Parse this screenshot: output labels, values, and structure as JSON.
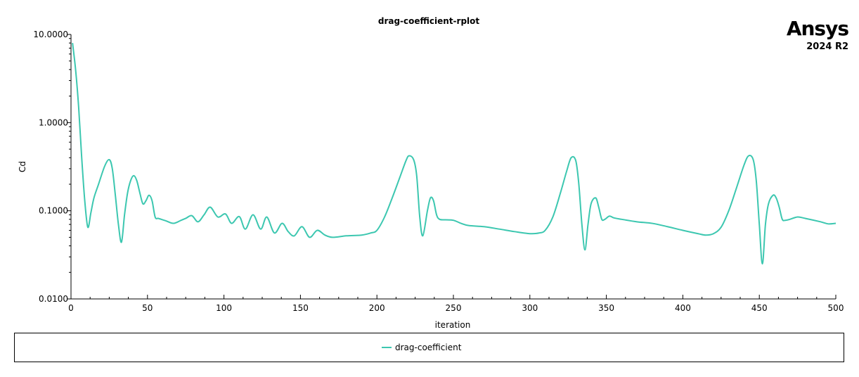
{
  "logo": {
    "name": "Ansys",
    "version": "2024 R2"
  },
  "chart_data": {
    "type": "line",
    "title": "drag-coefficient-rplot",
    "xlabel": "iteration",
    "ylabel": "Cd",
    "xlim": [
      0,
      500
    ],
    "ylim": [
      0.01,
      10
    ],
    "yscale": "log",
    "grid": false,
    "legend_placement": "bottom",
    "x_ticks": [
      0,
      50,
      100,
      150,
      200,
      250,
      300,
      350,
      400,
      450,
      500
    ],
    "x_tick_labels": [
      "0",
      "50",
      "100",
      "150",
      "200",
      "250",
      "300",
      "350",
      "400",
      "450",
      "500"
    ],
    "y_ticks": [
      0.01,
      0.1,
      1,
      10
    ],
    "y_tick_labels": [
      "0.0100",
      "0.1000",
      "1.0000",
      "10.0000"
    ],
    "series": [
      {
        "name": "drag-coefficient",
        "color": "#3cc7b0",
        "x": [
          1,
          3,
          5,
          7,
          9,
          11,
          13,
          15,
          18,
          22,
          25,
          27,
          29,
          31,
          33,
          35,
          37,
          39,
          41,
          43,
          45,
          47,
          49,
          51,
          53,
          55,
          57,
          59,
          62,
          67,
          72,
          75,
          79,
          83,
          87,
          91,
          96,
          101,
          105,
          110,
          114,
          119,
          124,
          128,
          133,
          138,
          142,
          146,
          151,
          156,
          161,
          166,
          171,
          180,
          190,
          196,
          200,
          205,
          210,
          215,
          219,
          221,
          224,
          226,
          228,
          230,
          233,
          235,
          237,
          239,
          241,
          245,
          250,
          255,
          260,
          270,
          280,
          290,
          300,
          306,
          310,
          315,
          320,
          324,
          327,
          330,
          332,
          334,
          336,
          338,
          340,
          343,
          345,
          347,
          349,
          352,
          355,
          360,
          370,
          380,
          390,
          400,
          410,
          415,
          420,
          425,
          430,
          435,
          440,
          443,
          446,
          448,
          450,
          452,
          454,
          456,
          459,
          461,
          463,
          465,
          467,
          470,
          475,
          480,
          490,
          495,
          500
        ],
        "y": [
          8.0,
          4.0,
          1.5,
          0.4,
          0.13,
          0.065,
          0.095,
          0.14,
          0.2,
          0.32,
          0.38,
          0.3,
          0.15,
          0.07,
          0.044,
          0.09,
          0.16,
          0.22,
          0.25,
          0.22,
          0.16,
          0.12,
          0.13,
          0.15,
          0.13,
          0.085,
          0.082,
          0.08,
          0.077,
          0.072,
          0.078,
          0.082,
          0.088,
          0.075,
          0.09,
          0.11,
          0.085,
          0.092,
          0.072,
          0.086,
          0.062,
          0.09,
          0.062,
          0.085,
          0.056,
          0.072,
          0.058,
          0.052,
          0.066,
          0.05,
          0.06,
          0.053,
          0.05,
          0.052,
          0.053,
          0.056,
          0.06,
          0.085,
          0.14,
          0.24,
          0.37,
          0.42,
          0.38,
          0.25,
          0.085,
          0.052,
          0.1,
          0.14,
          0.13,
          0.09,
          0.08,
          0.079,
          0.078,
          0.072,
          0.068,
          0.066,
          0.062,
          0.058,
          0.055,
          0.056,
          0.06,
          0.085,
          0.16,
          0.28,
          0.4,
          0.37,
          0.2,
          0.07,
          0.036,
          0.07,
          0.12,
          0.14,
          0.11,
          0.08,
          0.08,
          0.087,
          0.083,
          0.08,
          0.075,
          0.072,
          0.066,
          0.06,
          0.055,
          0.053,
          0.055,
          0.065,
          0.1,
          0.18,
          0.33,
          0.42,
          0.38,
          0.22,
          0.07,
          0.025,
          0.07,
          0.12,
          0.15,
          0.14,
          0.11,
          0.08,
          0.078,
          0.08,
          0.085,
          0.082,
          0.075,
          0.071,
          0.072
        ]
      }
    ]
  }
}
